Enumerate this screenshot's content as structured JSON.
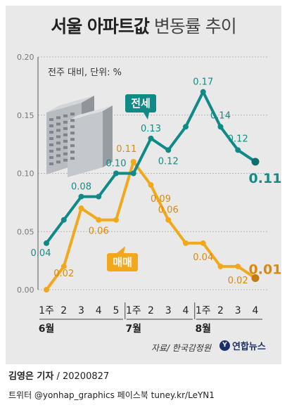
{
  "title": {
    "bold": "서울 아파트값",
    "light": "변동률 추이"
  },
  "subtitle": "전주 대비, 단위: %",
  "source": "자료/ 한국감정원",
  "logo": {
    "mark": "Y",
    "text": "연합뉴스"
  },
  "credit": {
    "name": "김영은 기자",
    "date": "/ 20200827"
  },
  "social": "트위터 @yonhap_graphics  페이스북 tuney.kr/LeYN1",
  "colors": {
    "jeonse": "#0f8a86",
    "maemae": "#f2a81d",
    "jeonse_label": "#148c86",
    "maemae_label": "#f2a81d",
    "grid": "#a9a9a9"
  },
  "icons": [
    "apartment-buildings-icon",
    "yonhap-logo-icon"
  ],
  "chart_data": {
    "type": "line",
    "categories": [
      "1주",
      "2",
      "3",
      "4",
      "5",
      "1주",
      "2",
      "3",
      "4",
      "1주",
      "2",
      "3",
      "4"
    ],
    "months": [
      {
        "label": "6월",
        "start": 0
      },
      {
        "label": "7월",
        "start": 5
      },
      {
        "label": "8월",
        "start": 9
      }
    ],
    "ylim": [
      0,
      0.2
    ],
    "yticks": [
      "0.00",
      "0.05",
      "0.10",
      "0.15",
      "0.20"
    ],
    "series": [
      {
        "name": "전세",
        "values": [
          0.04,
          0.06,
          0.08,
          0.08,
          0.1,
          0.1,
          0.13,
          0.12,
          0.14,
          0.17,
          0.14,
          0.12,
          0.11
        ],
        "labels": [
          "0.04",
          "",
          "0.08",
          "",
          "0.10",
          "",
          "0.13",
          "0.12",
          "",
          "0.17",
          "0.14",
          "0.12",
          "0.11"
        ]
      },
      {
        "name": "매매",
        "values": [
          0.0,
          0.02,
          0.07,
          0.06,
          0.06,
          0.11,
          0.09,
          0.06,
          0.04,
          0.04,
          0.02,
          0.02,
          0.01
        ],
        "labels": [
          "",
          "0.02",
          "",
          "0.06",
          "",
          "0.11",
          "0.09",
          "0.06",
          "",
          "0.04",
          "",
          "0.02",
          "0.01"
        ]
      }
    ]
  }
}
